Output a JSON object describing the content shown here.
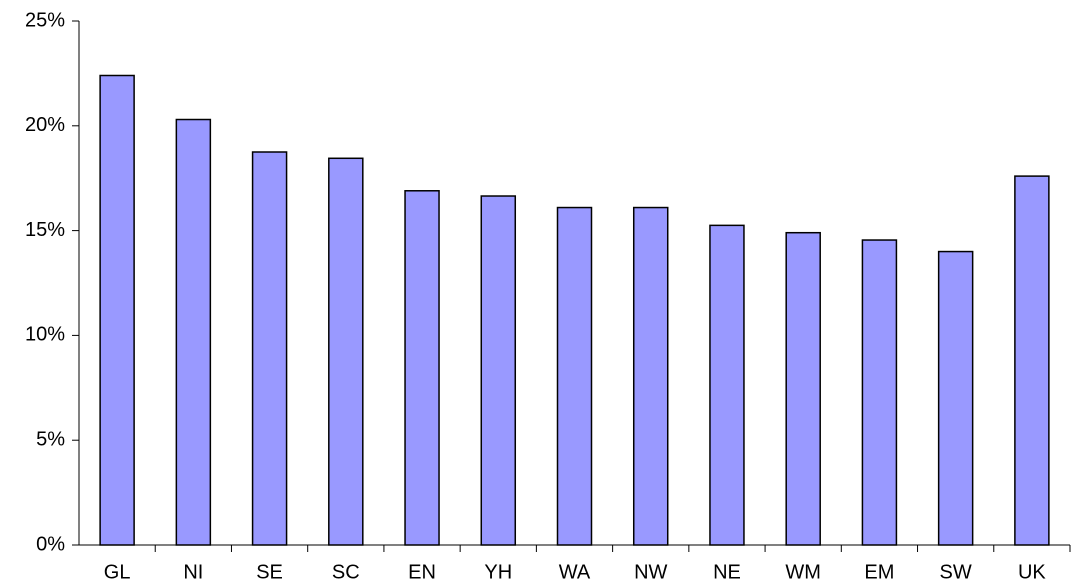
{
  "chart_data": {
    "type": "bar",
    "categories": [
      "GL",
      "NI",
      "SE",
      "SC",
      "EN",
      "YH",
      "WA",
      "NW",
      "NE",
      "WM",
      "EM",
      "SW",
      "UK"
    ],
    "values": [
      22.4,
      20.3,
      18.75,
      18.45,
      16.9,
      16.65,
      16.1,
      16.1,
      15.25,
      14.9,
      14.55,
      14.0,
      17.6
    ],
    "color": "#9999ff",
    "ylim": [
      0,
      25
    ],
    "yticks": [
      {
        "value": 0,
        "label": "0%"
      },
      {
        "value": 5,
        "label": "5%"
      },
      {
        "value": 10,
        "label": "10%"
      },
      {
        "value": 15,
        "label": "15%"
      },
      {
        "value": 20,
        "label": "20%"
      },
      {
        "value": 25,
        "label": "25%"
      }
    ],
    "grid": false
  }
}
